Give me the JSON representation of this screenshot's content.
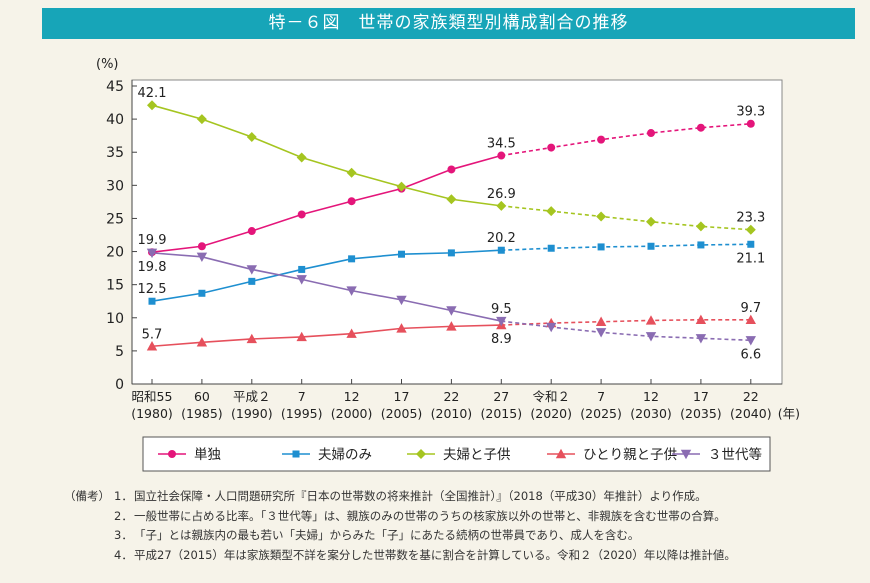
{
  "title": "特－６図　世帯の家族類型別構成割合の推移",
  "chart_data": {
    "type": "line",
    "ylabel": "(%)",
    "xlabel_suffix": "(年)",
    "ylim": [
      0,
      45
    ],
    "yticks": [
      0,
      5,
      10,
      15,
      20,
      25,
      30,
      35,
      40,
      45
    ],
    "categories": [
      {
        "era": "昭和55",
        "year": "(1980)"
      },
      {
        "era": "60",
        "year": "(1985)"
      },
      {
        "era": "平成２",
        "year": "(1990)"
      },
      {
        "era": "7",
        "year": "(1995)"
      },
      {
        "era": "12",
        "year": "(2000)"
      },
      {
        "era": "17",
        "year": "(2005)"
      },
      {
        "era": "22",
        "year": "(2010)"
      },
      {
        "era": "27",
        "year": "(2015)"
      },
      {
        "era": "令和２",
        "year": "(2020)"
      },
      {
        "era": "7",
        "year": "(2025)"
      },
      {
        "era": "12",
        "year": "(2030)"
      },
      {
        "era": "17",
        "year": "(2035)"
      },
      {
        "era": "22",
        "year": "(2040)"
      }
    ],
    "projection_from_index": 7,
    "series": [
      {
        "name": "単独",
        "color": "#e4157a",
        "marker": "circle",
        "values": [
          19.9,
          20.8,
          23.1,
          25.6,
          27.6,
          29.5,
          32.4,
          34.5,
          35.7,
          36.9,
          37.9,
          38.7,
          39.3
        ]
      },
      {
        "name": "夫婦のみ",
        "color": "#1e8fd0",
        "marker": "square",
        "values": [
          12.5,
          13.7,
          15.5,
          17.3,
          18.9,
          19.6,
          19.8,
          20.2,
          20.5,
          20.7,
          20.8,
          21.0,
          21.1
        ]
      },
      {
        "name": "夫婦と子供",
        "color": "#a5c520",
        "marker": "diamond",
        "values": [
          42.1,
          40.0,
          37.3,
          34.2,
          31.9,
          29.8,
          27.9,
          26.9,
          26.1,
          25.3,
          24.5,
          23.8,
          23.3
        ]
      },
      {
        "name": "ひとり親と子供",
        "color": "#e6505c",
        "marker": "triangle-up",
        "values": [
          5.7,
          6.3,
          6.8,
          7.1,
          7.6,
          8.4,
          8.7,
          8.9,
          9.2,
          9.4,
          9.6,
          9.7,
          9.7
        ]
      },
      {
        "name": "３世代等",
        "color": "#8a6cb2",
        "marker": "triangle-down",
        "values": [
          19.8,
          19.2,
          17.3,
          15.8,
          14.1,
          12.7,
          11.1,
          9.5,
          8.6,
          7.8,
          7.2,
          6.9,
          6.6
        ]
      }
    ],
    "data_labels": [
      {
        "series": 2,
        "index": 0,
        "text": "42.1",
        "side": "above"
      },
      {
        "series": 0,
        "index": 0,
        "text": "19.9",
        "side": "above"
      },
      {
        "series": 4,
        "index": 0,
        "text": "19.8",
        "side": "below"
      },
      {
        "series": 1,
        "index": 0,
        "text": "12.5",
        "side": "above"
      },
      {
        "series": 3,
        "index": 0,
        "text": "5.7",
        "side": "above"
      },
      {
        "series": 0,
        "index": 7,
        "text": "34.5",
        "side": "above"
      },
      {
        "series": 2,
        "index": 7,
        "text": "26.9",
        "side": "above"
      },
      {
        "series": 1,
        "index": 7,
        "text": "20.2",
        "side": "above"
      },
      {
        "series": 4,
        "index": 7,
        "text": "9.5",
        "side": "above"
      },
      {
        "series": 3,
        "index": 7,
        "text": "8.9",
        "side": "below"
      },
      {
        "series": 0,
        "index": 12,
        "text": "39.3",
        "side": "above"
      },
      {
        "series": 2,
        "index": 12,
        "text": "23.3",
        "side": "above"
      },
      {
        "series": 1,
        "index": 12,
        "text": "21.1",
        "side": "below"
      },
      {
        "series": 3,
        "index": 12,
        "text": "9.7",
        "side": "above"
      },
      {
        "series": 4,
        "index": 12,
        "text": "6.6",
        "side": "below"
      }
    ],
    "legend": "bottom"
  },
  "notes": {
    "head": "（備考）",
    "items": [
      {
        "num": "1．",
        "text": "国立社会保障・人口問題研究所『日本の世帯数の将来推計（全国推計）』（2018（平成30）年推計）より作成。"
      },
      {
        "num": "2．",
        "text": "一般世帯に占める比率。「３世代等」は、親族のみの世帯のうちの核家族以外の世帯と、非親族を含む世帯の合算。"
      },
      {
        "num": "3．",
        "text": "「子」とは親族内の最も若い「夫婦」からみた「子」にあたる続柄の世帯員であり、成人を含む。"
      },
      {
        "num": "4．",
        "text": "平成27（2015）年は家族類型不詳を案分した世帯数を基に割合を計算している。令和２（2020）年以降は推計値。"
      }
    ]
  }
}
